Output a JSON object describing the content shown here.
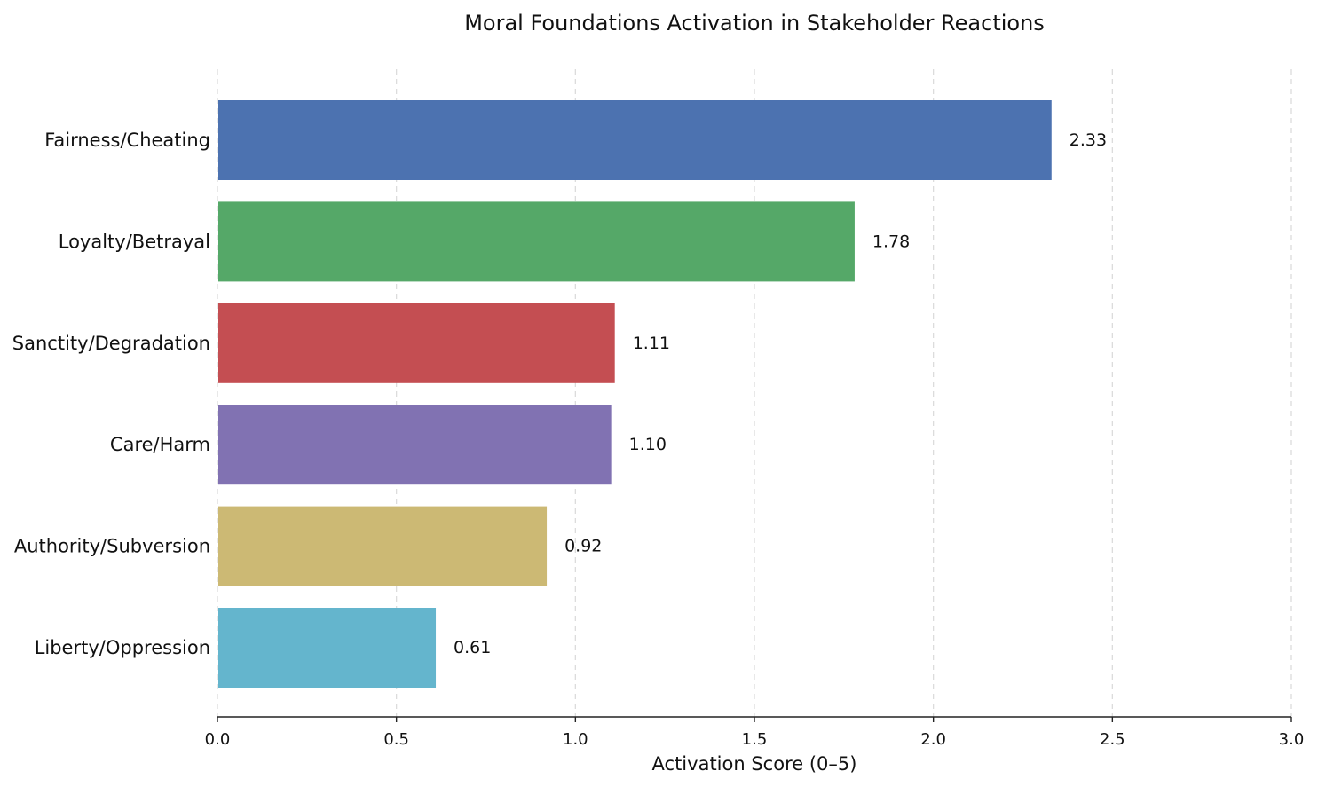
{
  "chart_data": {
    "type": "bar",
    "orientation": "horizontal",
    "title": "Moral Foundations Activation in Stakeholder Reactions",
    "xlabel": "Activation Score (0–5)",
    "ylabel": "",
    "xlim": [
      0,
      3.0
    ],
    "xticks": [
      "0.0",
      "0.5",
      "1.0",
      "1.5",
      "2.0",
      "2.5",
      "3.0"
    ],
    "grid": "vertical-dashed",
    "categories": [
      "Fairness/Cheating",
      "Loyalty/Betrayal",
      "Sanctity/Degradation",
      "Care/Harm",
      "Authority/Subversion",
      "Liberty/Oppression"
    ],
    "values": [
      2.33,
      1.78,
      1.11,
      1.1,
      0.92,
      0.61
    ],
    "value_labels": [
      "2.33",
      "1.78",
      "1.11",
      "1.10",
      "0.92",
      "0.61"
    ],
    "colors": [
      "#4c72b0",
      "#55a868",
      "#c44e52",
      "#8172b2",
      "#ccb974",
      "#64b5cd"
    ]
  }
}
